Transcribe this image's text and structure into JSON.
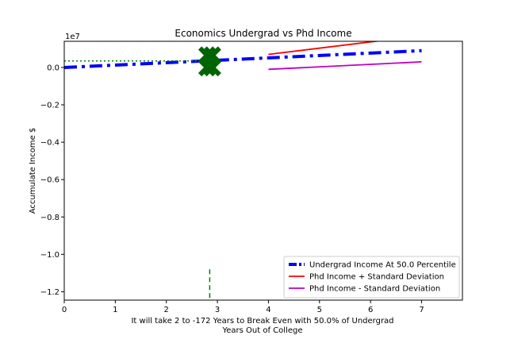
{
  "chart_data": {
    "type": "line",
    "title": "Economics Undergrad vs Phd Income",
    "xlabel_lines": [
      "It will take 2 to -172 Years to Break Even with 50.0% of Undergrad",
      "Years Out of College"
    ],
    "ylabel": "Accumulate Income $",
    "y_offset_text": "1e7",
    "xlim": [
      0,
      7.8
    ],
    "ylim": [
      -1.245,
      0.14
    ],
    "x_ticks": [
      0,
      1,
      2,
      3,
      4,
      5,
      6,
      7
    ],
    "x_tick_labels": [
      "0",
      "1",
      "2",
      "3",
      "4",
      "5",
      "6",
      "7"
    ],
    "y_ticks": [
      0.0,
      -0.2,
      -0.4,
      -0.6,
      -0.8,
      -1.0,
      -1.2
    ],
    "y_tick_labels": [
      "0.0",
      "−0.2",
      "−0.4",
      "−0.6",
      "−0.8",
      "−1.0",
      "−1.2"
    ],
    "legend_position": "lower-right",
    "series": [
      {
        "name": "Undergrad Income At 50.0 Percentile",
        "color": "#0000ff",
        "style": "dashdot-thick",
        "in_legend": true,
        "x": [
          0,
          7
        ],
        "y": [
          0.0,
          0.09
        ]
      },
      {
        "name": "Phd Income + Standard Deviation",
        "color": "#ff0000",
        "style": "solid",
        "in_legend": true,
        "x": [
          4,
          7
        ],
        "y": [
          0.07,
          0.17
        ]
      },
      {
        "name": "Phd Income - Standard Deviation",
        "color": "#bf00bf",
        "style": "solid",
        "in_legend": true,
        "x": [
          4,
          7
        ],
        "y": [
          -0.01,
          0.03
        ]
      },
      {
        "color": "#007f00",
        "style": "dotted",
        "in_legend": false,
        "x": [
          0,
          2.85
        ],
        "y": [
          0.035,
          0.035
        ]
      },
      {
        "color": "#007f00",
        "style": "dashed",
        "in_legend": false,
        "x": [
          2.85,
          2.85
        ],
        "y": [
          -1.08,
          -1.245
        ]
      }
    ],
    "markers": [
      {
        "x": 2.8,
        "y": 0.065,
        "color": "#006400",
        "shape": "X"
      },
      {
        "x": 2.9,
        "y": 0.065,
        "color": "#006400",
        "shape": "X"
      },
      {
        "x": 2.8,
        "y": 0.0,
        "color": "#006400",
        "shape": "X"
      },
      {
        "x": 2.9,
        "y": 0.0,
        "color": "#006400",
        "shape": "X"
      }
    ]
  }
}
